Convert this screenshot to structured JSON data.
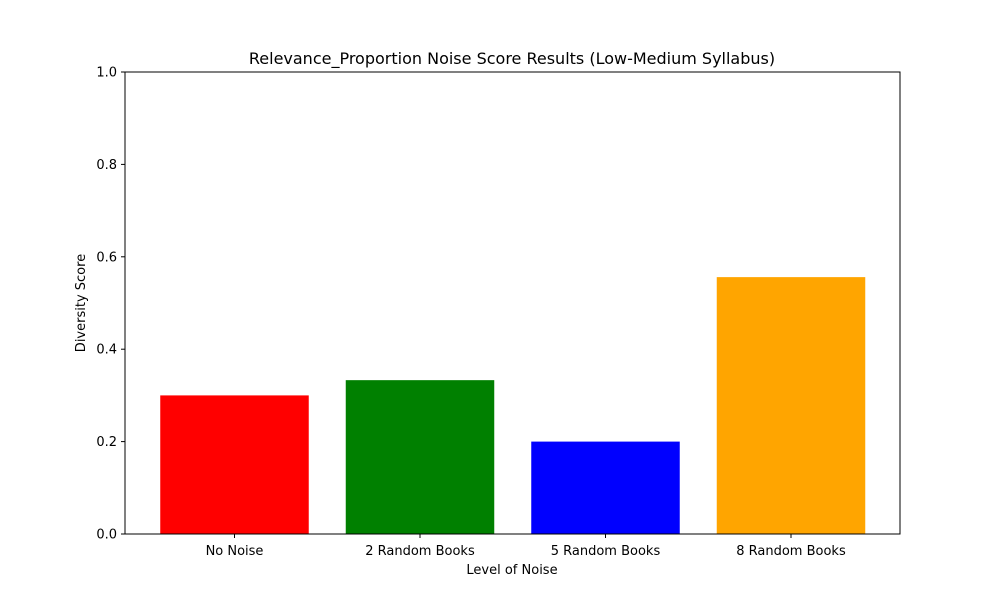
{
  "chart_data": {
    "type": "bar",
    "title": "Relevance_Proportion Noise Score Results (Low-Medium Syllabus)",
    "xlabel": "Level of Noise",
    "ylabel": "Diversity Score",
    "categories": [
      "No Noise",
      "2 Random Books",
      "5 Random Books",
      "8 Random Books"
    ],
    "values": [
      0.3,
      0.333,
      0.2,
      0.556
    ],
    "colors": [
      "#ff0000",
      "#008000",
      "#0000ff",
      "#ffa500"
    ],
    "ylim": [
      0,
      1.0
    ],
    "yticks": [
      "0.0",
      "0.2",
      "0.4",
      "0.6",
      "0.8",
      "1.0"
    ],
    "grid": false,
    "legend": "none"
  }
}
